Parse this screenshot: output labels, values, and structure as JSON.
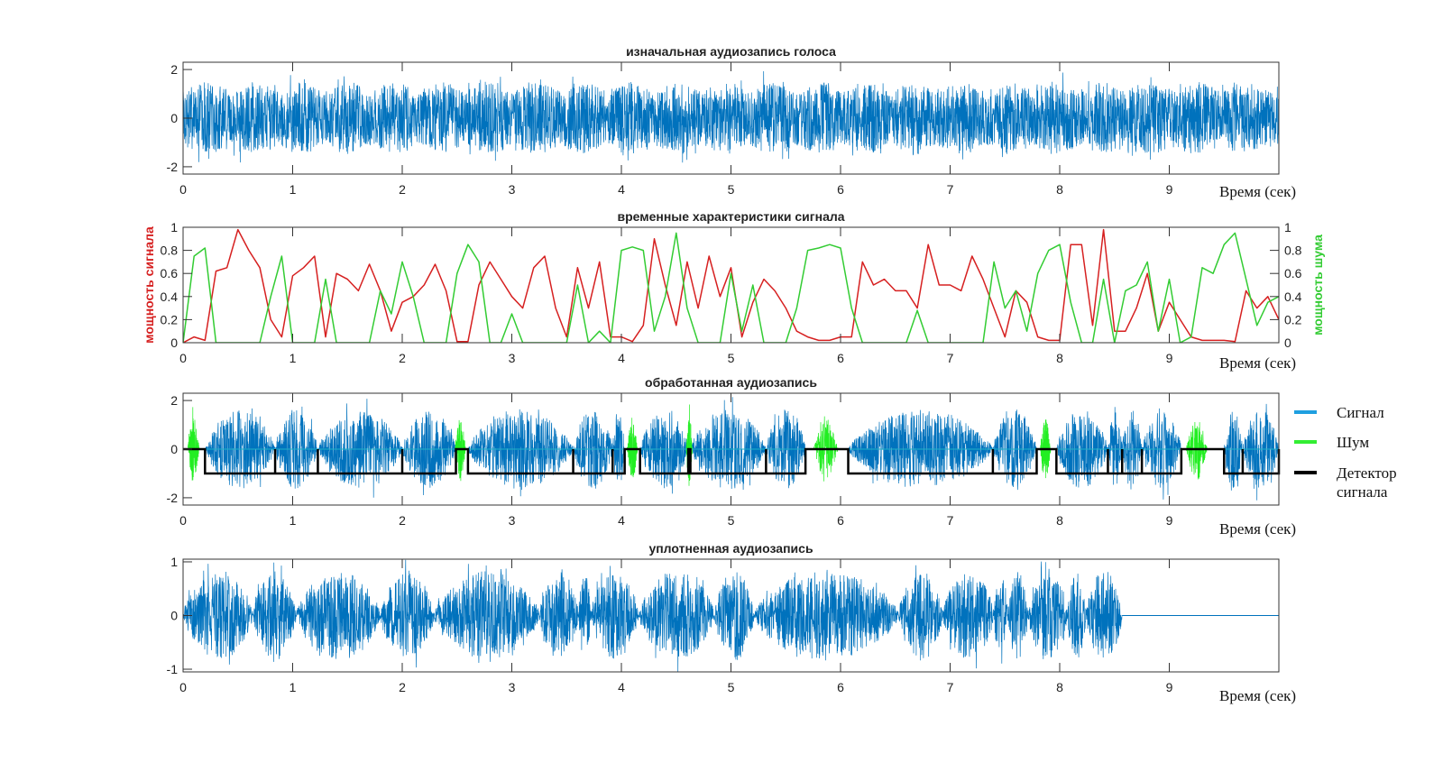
{
  "chart_data": [
    {
      "type": "line",
      "title": "изначальная аудиозапись голоса",
      "xlabel": "Время (сек)",
      "xlim": [
        0,
        10
      ],
      "ylim": [
        -2.3,
        2.3
      ],
      "xticks": [
        "0",
        "1",
        "2",
        "3",
        "4",
        "5",
        "6",
        "7",
        "8",
        "9"
      ],
      "yticks": [
        {
          "v": 2,
          "label": "2"
        },
        {
          "v": 0,
          "label": "0"
        },
        {
          "v": -2,
          "label": "-2"
        }
      ],
      "series": [
        {
          "name": "Сигнал",
          "color": "#0072bd",
          "kind": "waveform",
          "amplitude": 1.4,
          "peak": 2.2
        }
      ]
    },
    {
      "type": "line",
      "title": "временные характеристики сигнала",
      "xlabel": "Время (сек)",
      "ylabel_left": "мощность сигнала",
      "ylabel_right": "мощность шума",
      "xlim": [
        0,
        10
      ],
      "ylim": [
        0,
        1
      ],
      "xticks": [
        "0",
        "1",
        "2",
        "3",
        "4",
        "5",
        "6",
        "7",
        "8",
        "9"
      ],
      "yticks": [
        {
          "v": 1,
          "label": "1"
        },
        {
          "v": 0.8,
          "label": "0.8"
        },
        {
          "v": 0.6,
          "label": "0.6"
        },
        {
          "v": 0.4,
          "label": "0.4"
        },
        {
          "v": 0.2,
          "label": "0.2"
        },
        {
          "v": 0,
          "label": "0"
        }
      ],
      "x_step": 0.1,
      "series": [
        {
          "name": "мощность сигнала",
          "color": "#d62020",
          "values": [
            0,
            0.05,
            0.02,
            0.62,
            0.65,
            0.98,
            0.8,
            0.65,
            0.2,
            0.05,
            0.58,
            0.65,
            0.75,
            0.05,
            0.6,
            0.55,
            0.45,
            0.68,
            0.45,
            0.1,
            0.35,
            0.4,
            0.5,
            0.68,
            0.45,
            0.01,
            0.01,
            0.5,
            0.7,
            0.55,
            0.4,
            0.3,
            0.65,
            0.75,
            0.3,
            0.05,
            0.65,
            0.3,
            0.7,
            0.05,
            0.05,
            0.01,
            0.15,
            0.9,
            0.5,
            0.15,
            0.7,
            0.3,
            0.75,
            0.4,
            0.65,
            0.05,
            0.35,
            0.55,
            0.45,
            0.3,
            0.1,
            0.05,
            0.02,
            0.02,
            0.05,
            0.05,
            0.7,
            0.5,
            0.55,
            0.45,
            0.45,
            0.3,
            0.85,
            0.5,
            0.5,
            0.45,
            0.75,
            0.55,
            0.3,
            0.05,
            0.45,
            0.35,
            0.05,
            0.02,
            0.02,
            0.85,
            0.85,
            0.15,
            0.98,
            0.1,
            0.1,
            0.3,
            0.6,
            0.1,
            0.35,
            0.2,
            0.05,
            0.02,
            0.02,
            0.02,
            0.01,
            0.45,
            0.3,
            0.4,
            0.2
          ]
        },
        {
          "name": "мощность шума",
          "color": "#33cc33",
          "values": [
            0,
            0.75,
            0.82,
            0,
            0,
            0,
            0,
            0,
            0.4,
            0.75,
            0,
            0,
            0,
            0.55,
            0,
            0,
            0,
            0,
            0.45,
            0.25,
            0.7,
            0.4,
            0,
            0,
            0,
            0.6,
            0.85,
            0.7,
            0,
            0,
            0.25,
            0,
            0,
            0,
            0,
            0,
            0.5,
            0,
            0.1,
            0,
            0.8,
            0.83,
            0.8,
            0.1,
            0.4,
            0.95,
            0.3,
            0,
            0,
            0,
            0.6,
            0.1,
            0.5,
            0,
            0,
            0,
            0.3,
            0.8,
            0.82,
            0.85,
            0.82,
            0.3,
            0,
            0,
            0,
            0,
            0,
            0.28,
            0,
            0,
            0,
            0,
            0,
            0,
            0.7,
            0.3,
            0.45,
            0.1,
            0.6,
            0.8,
            0.85,
            0.35,
            0,
            0,
            0.55,
            0,
            0.45,
            0.5,
            0.7,
            0.1,
            0.55,
            0,
            0.05,
            0.65,
            0.6,
            0.85,
            0.95,
            0.55,
            0.15,
            0.35,
            0.4
          ]
        }
      ]
    },
    {
      "type": "line",
      "title": "обработанная аудиозапись",
      "xlabel": "Время (сек)",
      "xlim": [
        0,
        10
      ],
      "ylim": [
        -2.3,
        2.3
      ],
      "xticks": [
        "0",
        "1",
        "2",
        "3",
        "4",
        "5",
        "6",
        "7",
        "8",
        "9"
      ],
      "yticks": [
        {
          "v": 2,
          "label": "2"
        },
        {
          "v": 0,
          "label": "0"
        },
        {
          "v": -2,
          "label": "-2"
        }
      ],
      "legend": {
        "placement": "right-outside",
        "entries": [
          {
            "label": "Сигнал",
            "color": "#1f9fe0"
          },
          {
            "label": "Шум",
            "color": "#33ee33"
          },
          {
            "label": "Детектор сигнала",
            "color": "#000000"
          }
        ]
      },
      "signal_segments": [
        [
          0.2,
          0.84
        ],
        [
          0.84,
          1.23
        ],
        [
          1.23,
          2.0
        ],
        [
          2.0,
          2.49
        ],
        [
          2.6,
          3.56
        ],
        [
          3.56,
          3.92
        ],
        [
          3.92,
          4.03
        ],
        [
          4.17,
          4.61
        ],
        [
          4.63,
          5.32
        ],
        [
          5.32,
          5.68
        ],
        [
          6.07,
          7.39
        ],
        [
          7.39,
          7.79
        ],
        [
          7.97,
          8.44
        ],
        [
          8.44,
          8.57
        ],
        [
          8.57,
          8.75
        ],
        [
          8.75,
          9.11
        ],
        [
          9.5,
          9.67
        ],
        [
          9.67,
          10.0
        ]
      ],
      "signal_amplitude": 1.8,
      "noise_bursts": [
        [
          0.04,
          0.15
        ],
        [
          2.48,
          2.58
        ],
        [
          4.05,
          4.15
        ],
        [
          4.59,
          4.65
        ],
        [
          5.75,
          5.98
        ],
        [
          7.82,
          7.92
        ],
        [
          9.15,
          9.35
        ]
      ],
      "noise_amplitude": 1.5,
      "detector_levels": {
        "signal": -1,
        "noise": 0
      }
    },
    {
      "type": "line",
      "title": "уплотненная аудиозапись",
      "xlabel": "Время (сек)",
      "xlim": [
        0,
        10
      ],
      "ylim": [
        -1.05,
        1.05
      ],
      "xticks": [
        "0",
        "1",
        "2",
        "3",
        "4",
        "5",
        "6",
        "7",
        "8",
        "9"
      ],
      "yticks": [
        {
          "v": 1,
          "label": "1"
        },
        {
          "v": 0,
          "label": "0"
        },
        {
          "v": -1,
          "label": "-1"
        }
      ],
      "signal_end": 8.57,
      "signal_amplitude": 0.9,
      "series": [
        {
          "name": "Сигнал",
          "color": "#0072bd",
          "kind": "compressed-waveform"
        }
      ]
    }
  ]
}
